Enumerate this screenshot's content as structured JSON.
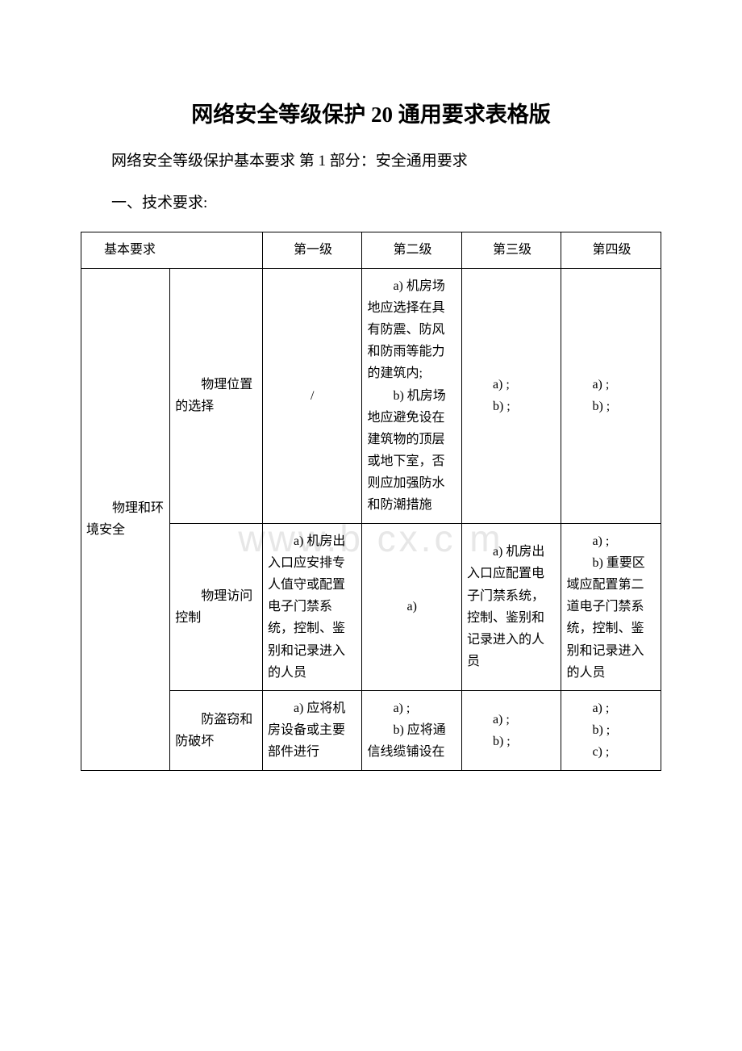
{
  "title": "网络安全等级保护 20 通用要求表格版",
  "subtitle": "网络安全等级保护基本要求 第 1 部分：安全通用要求",
  "section": "一、技术要求:",
  "watermark": "www.b   cx.c   m",
  "table": {
    "header": {
      "requirement": "基本要求",
      "level1": "　　第一级",
      "level2": "　　第二级",
      "level3": "　　第三级",
      "level4": "　　第四级"
    },
    "category": "　　物理和环境安全",
    "rows": [
      {
        "sub": "　　物理位置的选择",
        "l1": "/",
        "l2": "　　a) 机房场地应选择在具有防震、防风和防雨等能力的建筑内;\n　　b) 机房场地应避免设在建筑物的顶层或地下室，否则应加强防水和防潮措施",
        "l3": "　　a) ;\n　　b) ;",
        "l4": "　　a) ;\n　　b) ;"
      },
      {
        "sub": "　　物理访问控制",
        "l1": "　　a) 机房出入口应安排专人值守或配置电子门禁系统，控制、鉴别和记录进入的人员",
        "l2": "a)",
        "l3": "　　a) 机房出入口应配置电子门禁系统，控制、鉴别和记录进入的人员",
        "l4": "　　a) ;\n　　b) 重要区域应配置第二道电子门禁系统，控制、鉴别和记录进入的人员"
      },
      {
        "sub": "　　防盗窃和防破坏",
        "l1": "　　a) 应将机房设备或主要部件进行",
        "l2": "　　a) ;\n　　b) 应将通信线缆铺设在",
        "l3": "　　a) ;\n　　b) ;",
        "l4": "　　a) ;\n　　b) ;\n　　c) ;"
      }
    ]
  },
  "colors": {
    "text": "#000000",
    "background": "#ffffff",
    "border": "#000000",
    "watermark": "#e7e7e7"
  },
  "fonts": {
    "title_size": 27,
    "body_size": 19,
    "table_size": 16,
    "watermark_size": 46
  }
}
